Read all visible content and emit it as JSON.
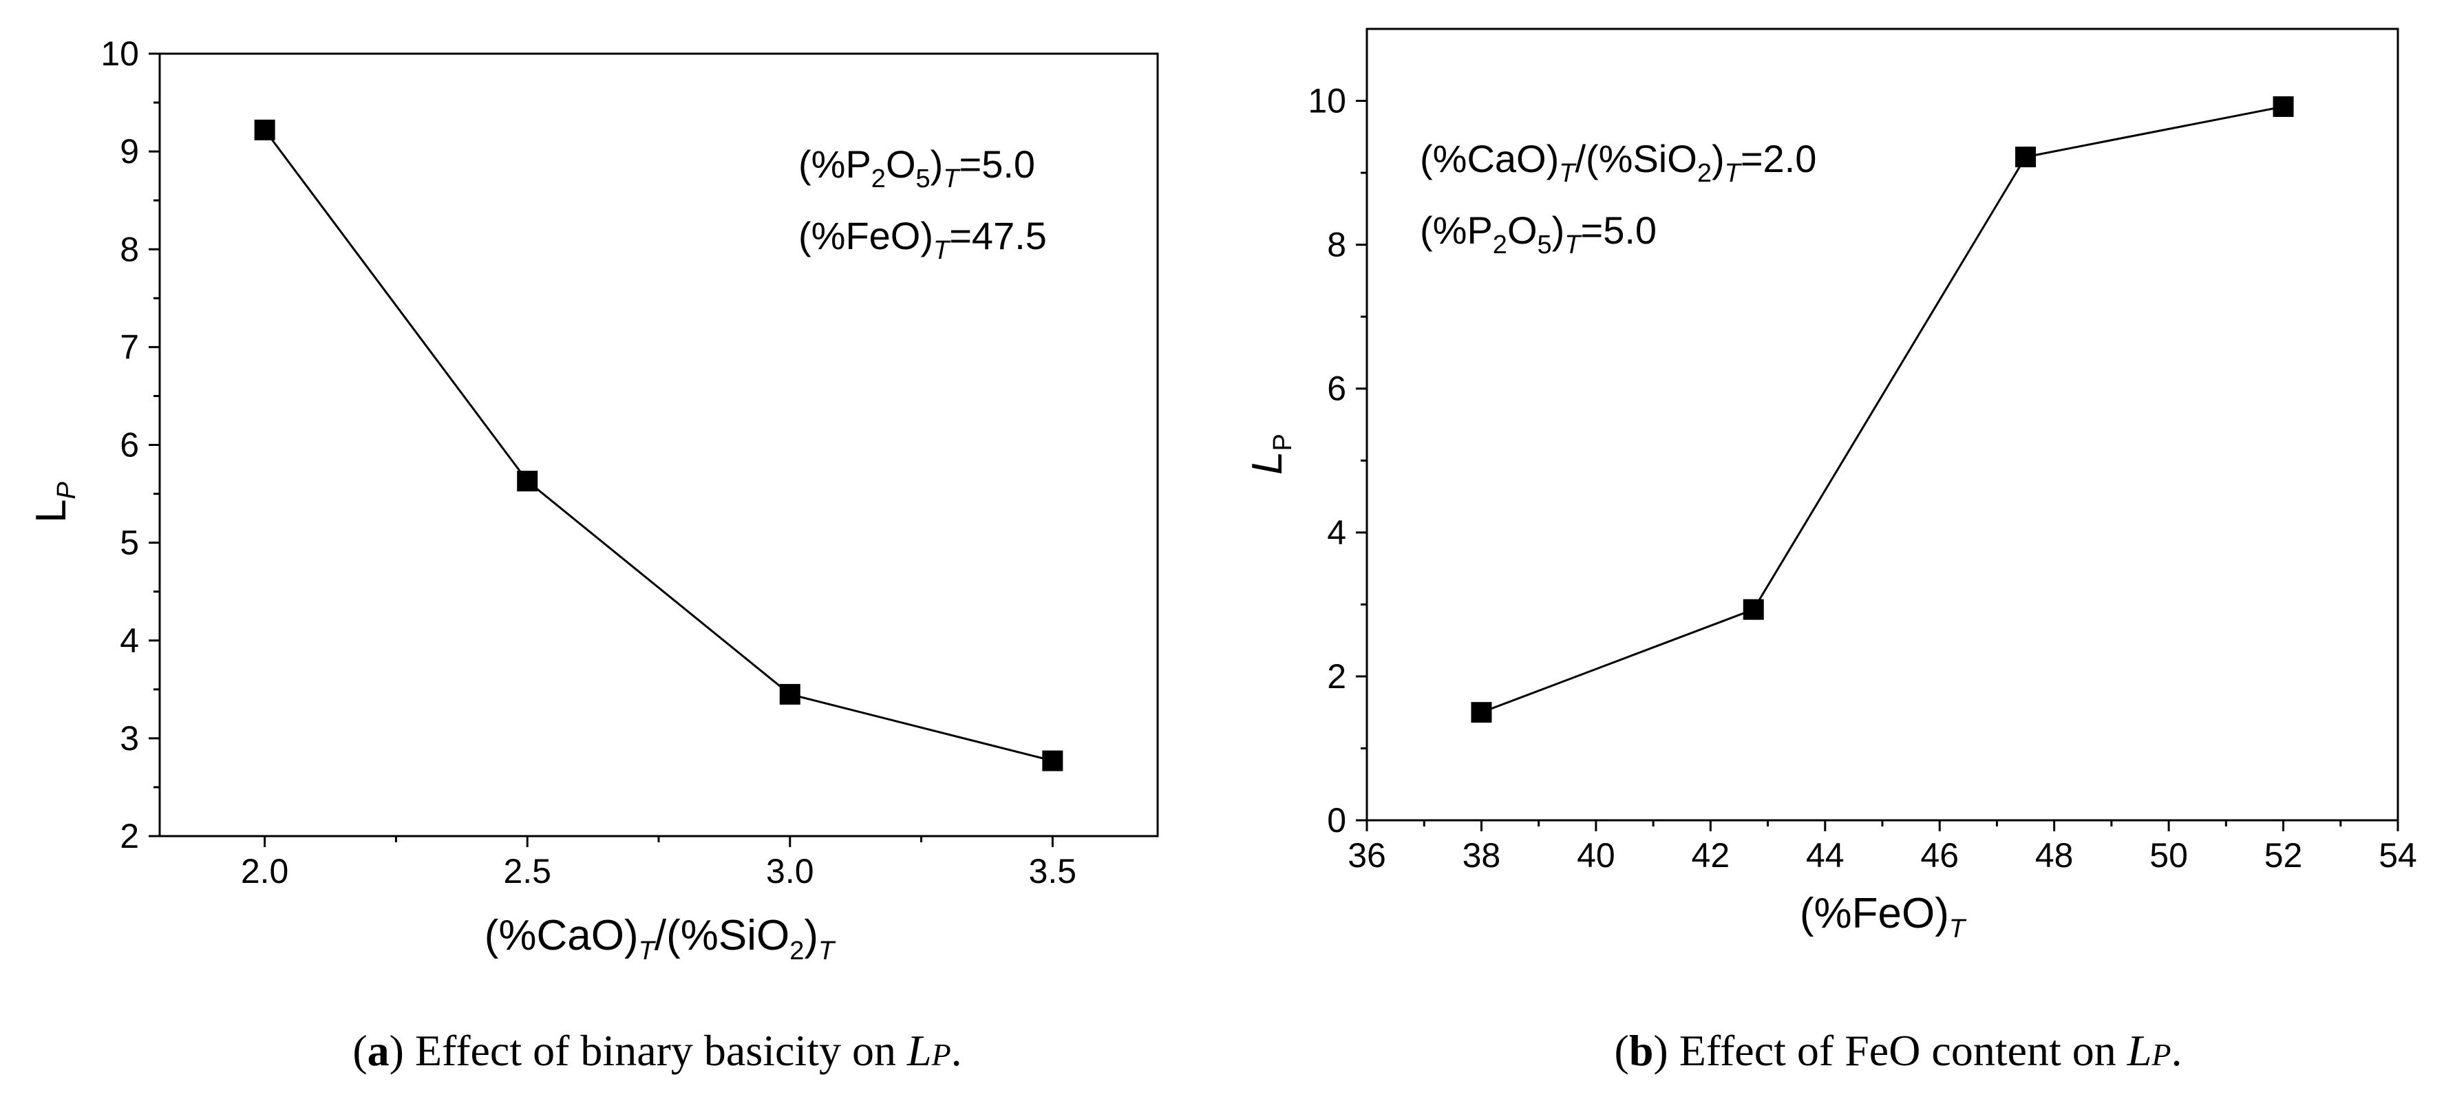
{
  "chart_data": [
    {
      "type": "line",
      "id": "a",
      "caption_label": "a",
      "caption_text": "Effect of binary basicity on",
      "caption_sym_main": "L",
      "caption_sym_sub": "P",
      "caption_end": ".",
      "xlabel": {
        "lead": "(%CaO)",
        "t1": "T",
        "mid": "/(%SiO",
        "two": "2",
        "close": ")",
        "t2": "T"
      },
      "ylabel": {
        "main": "L",
        "sub": "P"
      },
      "xlim": [
        1.8,
        3.7
      ],
      "ylim": [
        2,
        10
      ],
      "xticks": [
        2.0,
        2.5,
        3.0,
        3.5
      ],
      "xtick_labels": [
        "2.0",
        "2.5",
        "3.0",
        "3.5"
      ],
      "yticks": [
        2,
        3,
        4,
        5,
        6,
        7,
        8,
        9,
        10
      ],
      "ytick_labels": [
        "2",
        "3",
        "4",
        "5",
        "6",
        "7",
        "8",
        "9",
        "10"
      ],
      "x": [
        2.0,
        2.5,
        3.0,
        3.5
      ],
      "y": [
        9.22,
        5.63,
        3.45,
        2.77
      ],
      "annotations": [
        {
          "open": "(%P",
          "s1": "2",
          "mid": "O",
          "s2": "5",
          "close": ")",
          "t": "T",
          "val": "=5.0"
        },
        {
          "open": "(%FeO)",
          "t": "T",
          "val": "=47.5"
        }
      ]
    },
    {
      "type": "line",
      "id": "b",
      "caption_label": "b",
      "caption_text": "Effect of FeO content on",
      "caption_sym_main": "L",
      "caption_sym_sub": "P",
      "caption_end": ".",
      "xlabel": {
        "lead": "(%FeO)",
        "t1": "T"
      },
      "ylabel": {
        "main": "L",
        "sub": "P"
      },
      "xlim": [
        36,
        54
      ],
      "ylim": [
        0,
        11
      ],
      "xticks": [
        36,
        38,
        40,
        42,
        44,
        46,
        48,
        50,
        52,
        54
      ],
      "xtick_labels": [
        "36",
        "38",
        "40",
        "42",
        "44",
        "46",
        "48",
        "50",
        "52",
        "54"
      ],
      "yticks": [
        0,
        2,
        4,
        6,
        8,
        10
      ],
      "ytick_labels": [
        "0",
        "2",
        "4",
        "6",
        "8",
        "10"
      ],
      "x": [
        38,
        42.75,
        47.5,
        52
      ],
      "y": [
        1.5,
        2.93,
        9.22,
        9.92
      ],
      "annotations": [
        {
          "open": "(%CaO)",
          "t": "T",
          "mid": "/(%SiO",
          "s1": "2",
          "close": ")",
          "t2": "T",
          "val": "=2.0"
        },
        {
          "open": "(%P",
          "s1": "2",
          "mid": "O",
          "s2": "5",
          "close": ")",
          "t": "T",
          "val": "=5.0"
        }
      ]
    }
  ]
}
